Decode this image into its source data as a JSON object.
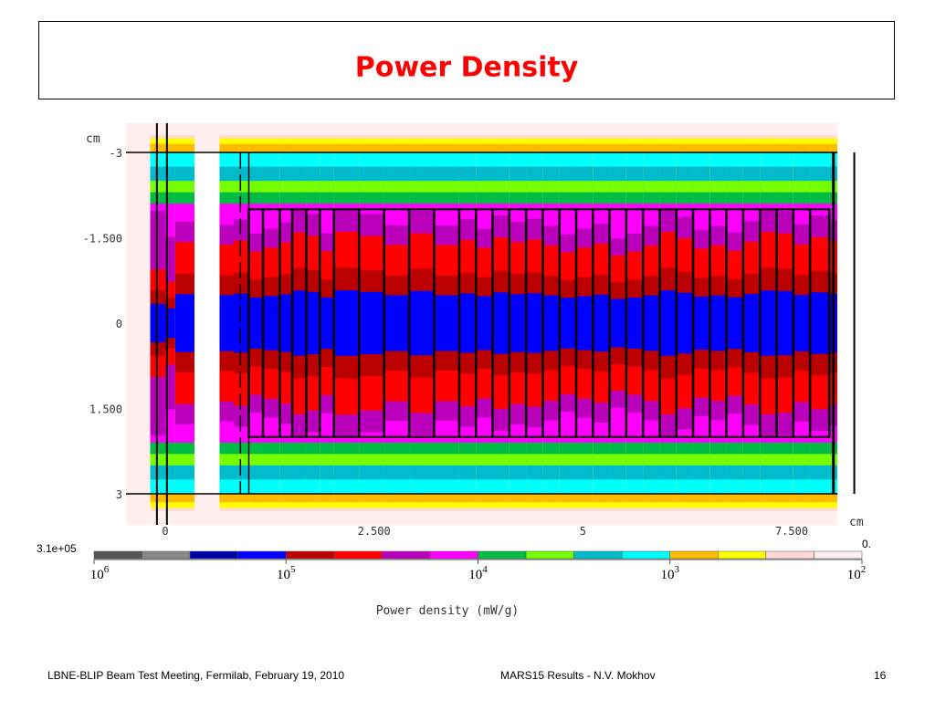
{
  "slide": {
    "title": "Power Density",
    "footer_left": "LBNE-BLIP Beam Test Meeting, Fermilab, February 19, 2010",
    "footer_center": "MARS15 Results -  N.V. Mokhov",
    "page_number": "16"
  },
  "chart_data": {
    "type": "heatmap",
    "title": "",
    "x_unit": "cm",
    "y_unit": "cm",
    "xlabel": "cm",
    "ylabel": "cm",
    "xlim": [
      -0.5,
      8.3
    ],
    "ylim": [
      3.3,
      -3.3
    ],
    "x_ticks": [
      0,
      2.5,
      5,
      7.5
    ],
    "x_tick_labels": [
      "0",
      "2.500",
      "5",
      "7.500"
    ],
    "y_ticks": [
      -3,
      -1.5,
      0,
      1.5,
      3
    ],
    "y_tick_labels": [
      "-3",
      "-1.500",
      "0",
      "1.500",
      "3"
    ],
    "colorbar": {
      "label": "Power density (mW/g)",
      "max_label": "3.1e+05",
      "min_label": "0.",
      "scale": "log",
      "ticks": [
        1000000,
        100000,
        10000,
        1000,
        100
      ],
      "tick_bases": [
        "10",
        "10",
        "10",
        "10",
        "10"
      ],
      "tick_exponents": [
        "6",
        "5",
        "4",
        "3",
        "2"
      ],
      "colors": [
        "#555555",
        "#888888",
        "#0000aa",
        "#0000ff",
        "#bb0000",
        "#ff0000",
        "#bb00bb",
        "#ff00ff",
        "#00bb44",
        "#77ff00",
        "#00bbcc",
        "#00ffff",
        "#ffbb00",
        "#ffff00",
        "#ffd8d8",
        "#ffeeee"
      ]
    },
    "radial_levels": [
      {
        "r_cm": 0.5,
        "color": "#0000ff",
        "value": 200000
      },
      {
        "r_cm": 0.85,
        "color": "#bb0000",
        "value": 80000
      },
      {
        "r_cm": 1.4,
        "color": "#ff0000",
        "value": 40000
      },
      {
        "r_cm": 1.75,
        "color": "#bb00bb",
        "value": 15000
      },
      {
        "r_cm": 2.1,
        "color": "#ff00ff",
        "value": 8000
      },
      {
        "r_cm": 2.3,
        "color": "#00bb44",
        "value": 5000
      },
      {
        "r_cm": 2.5,
        "color": "#77ff00",
        "value": 3000
      },
      {
        "r_cm": 2.75,
        "color": "#00bbcc",
        "value": 2000
      },
      {
        "r_cm": 3.0,
        "color": "#00ffff",
        "value": 1200
      },
      {
        "r_cm": 3.15,
        "color": "#ffbb00",
        "value": 700
      },
      {
        "r_cm": 3.25,
        "color": "#ffff00",
        "value": 400
      },
      {
        "r_cm": 3.3,
        "color": "#ffd8d8",
        "value": 150
      }
    ],
    "geometry": {
      "outer_half_height_cm": 3.0,
      "target_half_height_cm": 2.0,
      "target_start_cm": 1.0,
      "target_end_cm": 7.95,
      "segment_edges_cm": [
        1.0,
        1.17,
        1.37,
        1.52,
        1.69,
        1.85,
        2.02,
        2.32,
        2.62,
        2.92,
        3.22,
        3.52,
        3.72,
        3.92,
        4.12,
        4.32,
        4.52,
        4.72,
        4.92,
        5.12,
        5.32,
        5.52,
        5.72,
        5.92,
        6.12,
        6.32,
        6.52,
        6.72,
        6.92,
        7.12,
        7.32,
        7.52,
        7.72,
        7.95
      ],
      "window_gap_cm": [
        0.35,
        0.65
      ]
    }
  }
}
